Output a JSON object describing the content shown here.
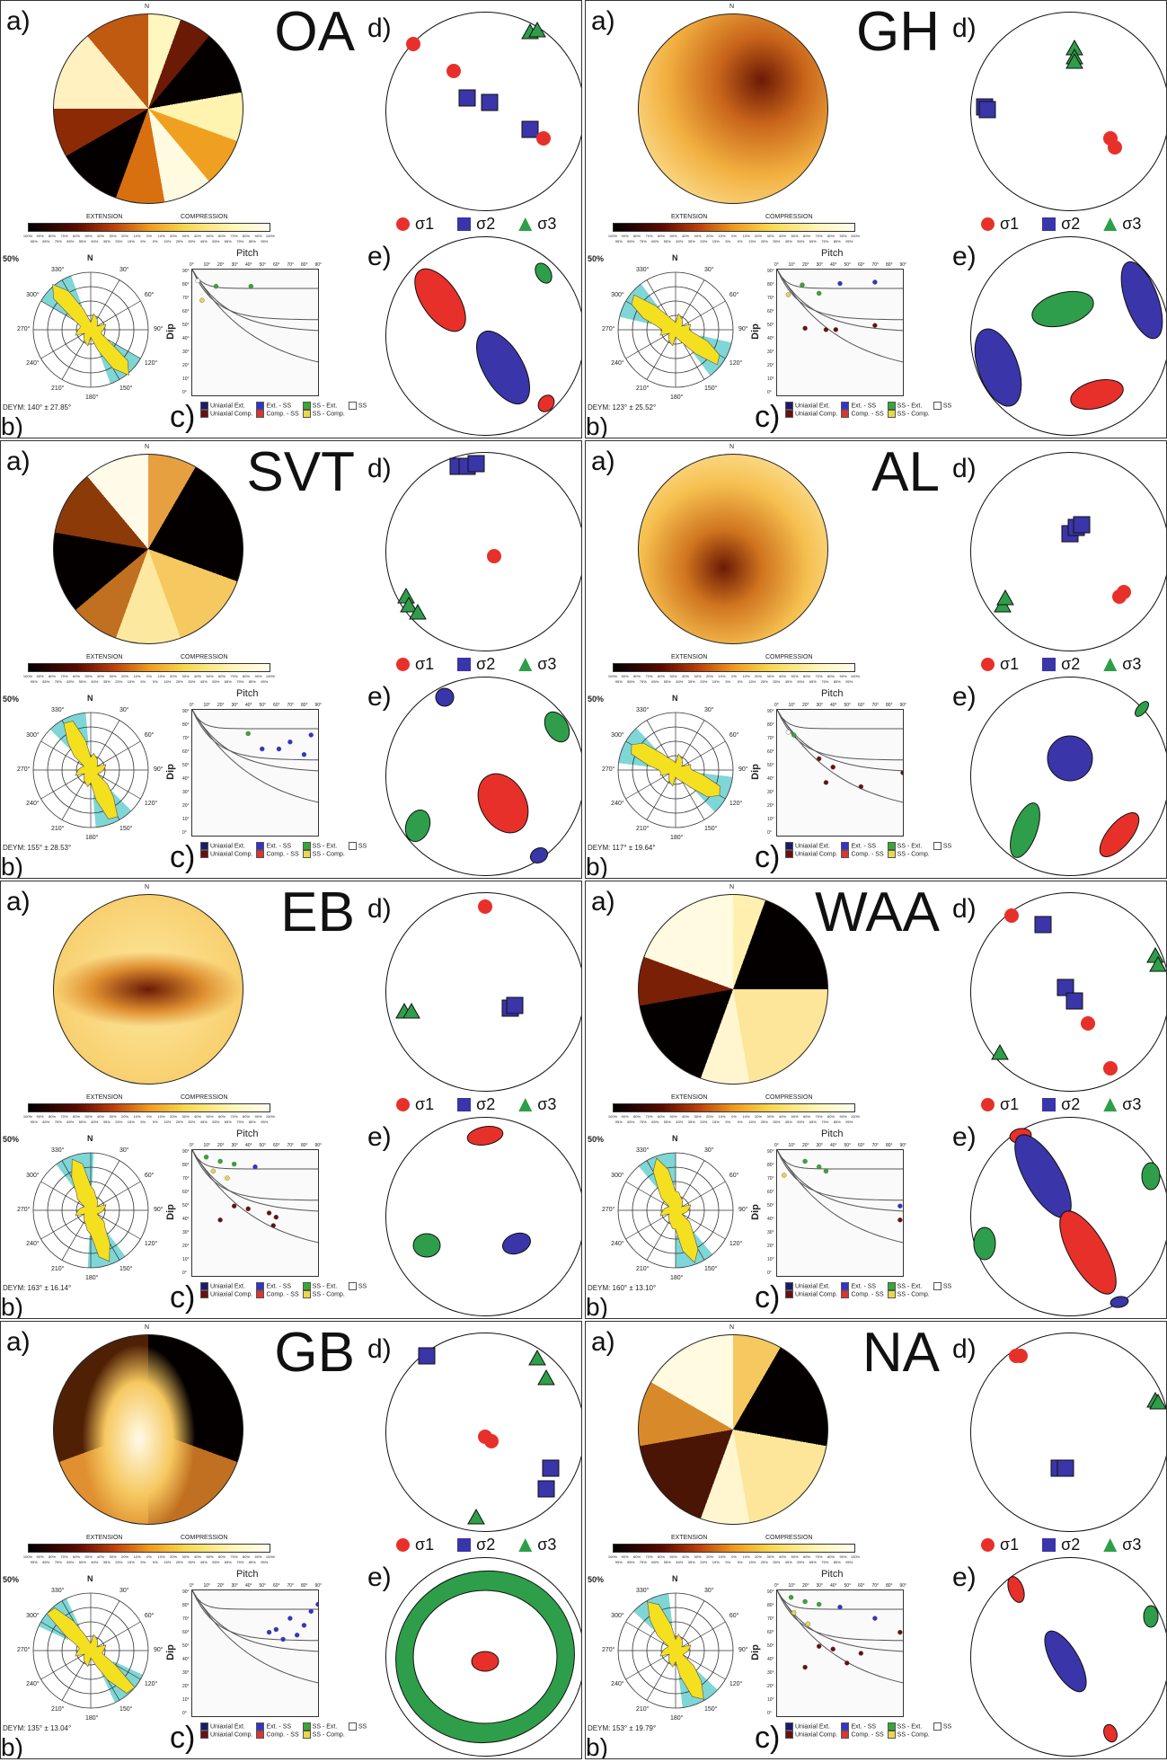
{
  "panel_labels": {
    "a": "a)",
    "b": "b)",
    "c": "c)",
    "d": "d)",
    "e": "e)"
  },
  "colorbar": {
    "extension_label": "EXTENSION",
    "compression_label": "COMPRESSION",
    "ticks": [
      "100%",
      "95%",
      "90%",
      "85%",
      "80%",
      "75%",
      "70%",
      "65%",
      "60%",
      "55%",
      "50%",
      "45%",
      "40%",
      "35%",
      "30%",
      "25%",
      "20%",
      "15%",
      "10%",
      "5%",
      "0%",
      "5%",
      "10%",
      "15%",
      "20%",
      "25%",
      "30%",
      "35%",
      "40%",
      "45%",
      "50%",
      "55%",
      "60%",
      "65%",
      "70%",
      "75%",
      "80%",
      "85%",
      "90%",
      "95%",
      "100%"
    ]
  },
  "rose": {
    "north": "N",
    "scale_label": "50%",
    "azimuth_labels": [
      "30°",
      "60°",
      "90°",
      "120°",
      "150°",
      "180°",
      "210°",
      "240°",
      "270°",
      "300°",
      "330°"
    ]
  },
  "pitch_plot": {
    "title": "Pitch",
    "ylabel": "Dip",
    "x_ticks": [
      "0°",
      "10°",
      "20°",
      "30°",
      "40°",
      "50°",
      "60°",
      "70°",
      "80°",
      "90°"
    ],
    "y_ticks": [
      "90°",
      "80°",
      "70°",
      "60°",
      "50°",
      "40°",
      "30°",
      "20°",
      "10°",
      "0°"
    ],
    "legend": [
      {
        "label": "Uniaxial Ext.",
        "color": "#1a1a6e"
      },
      {
        "label": "Ext. - SS",
        "color": "#3333cc"
      },
      {
        "label": "SS - Ext.",
        "color": "#33aa33"
      },
      {
        "label": "SS",
        "color": "#ffffff"
      },
      {
        "label": "Uniaxial Comp.",
        "color": "#6b0f0f"
      },
      {
        "label": "Comp. - SS",
        "color": "#dd3333"
      },
      {
        "label": "SS - Comp.",
        "color": "#e8d84a"
      }
    ]
  },
  "sigma_legend": [
    {
      "label": "σ1",
      "symbol": "circle",
      "color": "#e8302a"
    },
    {
      "label": "σ2",
      "symbol": "square",
      "color": "#3a35a8"
    },
    {
      "label": "σ3",
      "symbol": "triangle",
      "color": "#2e9e4a"
    }
  ],
  "panels": [
    {
      "site": "OA",
      "deym": "DEYM: 140° ± 27.85°"
    },
    {
      "site": "GH",
      "deym": "DEYM: 123° ± 25.52°"
    },
    {
      "site": "SVT",
      "deym": "DEYM: 155° ± 28.53°"
    },
    {
      "site": "AL",
      "deym": "DEYM: 117° ± 19.64°"
    },
    {
      "site": "EB",
      "deym": "DEYM: 163° ± 16.14°"
    },
    {
      "site": "WAA",
      "deym": "DEYM: 160° ± 13.10°"
    },
    {
      "site": "GB",
      "deym": "DEYM: 135° ± 13.04°"
    },
    {
      "site": "NA",
      "deym": "DEYM: 153° ± 19.79°"
    }
  ],
  "colors": {
    "ellipse_sigma1": "#e8302a",
    "ellipse_sigma2": "#3a35a8",
    "ellipse_sigma3": "#2e9e4a",
    "rose_fill": "#f5e020",
    "rose_highlight": "#7fd6d6"
  }
}
